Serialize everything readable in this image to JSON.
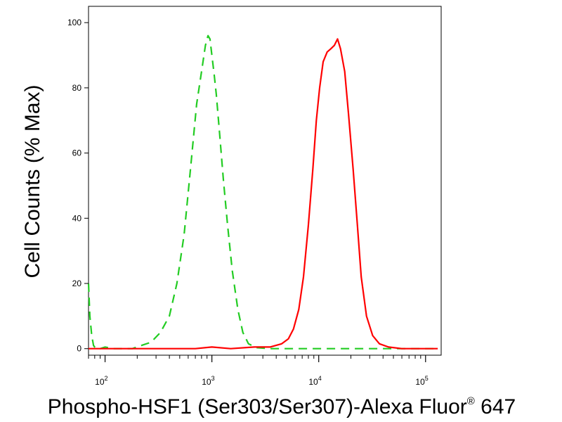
{
  "chart_data": {
    "type": "line",
    "title": "",
    "xlabel": "Phospho-HSF1 (Ser303/Ser307)-Alexa Fluor",
    "xlabel_sup": "®",
    "xlabel_tail": " 647",
    "ylabel": "Cell Counts (% Max)",
    "x_scale": "log",
    "xlim": [
      70,
      140000
    ],
    "ylim": [
      -2,
      105
    ],
    "x_ticks": [
      {
        "value": 100,
        "base": "10",
        "exp": "2"
      },
      {
        "value": 1000,
        "base": "10",
        "exp": "3"
      },
      {
        "value": 10000,
        "base": "10",
        "exp": "4"
      },
      {
        "value": 100000,
        "base": "10",
        "exp": "5"
      }
    ],
    "y_ticks": [
      0,
      20,
      40,
      60,
      80,
      100
    ],
    "grid": false,
    "legend": "none",
    "series": [
      {
        "color": "#22cc22",
        "style": "dashed",
        "x": [
          70,
          72,
          75,
          78,
          82,
          90,
          100,
          120,
          150,
          180,
          220,
          270,
          330,
          400,
          470,
          550,
          630,
          720,
          800,
          870,
          920,
          960,
          1000,
          1050,
          1100,
          1180,
          1280,
          1400,
          1550,
          1750,
          1950,
          2200,
          2600,
          3500,
          6000,
          10000,
          20000,
          50000,
          130000
        ],
        "y": [
          20,
          10,
          4,
          1,
          0,
          0,
          0.5,
          0,
          0,
          0,
          1,
          2,
          5,
          10,
          20,
          35,
          55,
          75,
          85,
          93,
          96,
          95,
          90,
          84,
          78,
          66,
          52,
          38,
          24,
          12,
          5,
          1.5,
          0.3,
          0,
          0,
          0,
          0,
          0,
          0
        ]
      },
      {
        "color": "#ff0000",
        "style": "solid",
        "x": [
          70,
          100,
          300,
          700,
          1000,
          1500,
          2500,
          3500,
          4500,
          5200,
          5800,
          6500,
          7200,
          8000,
          8800,
          9500,
          10200,
          11000,
          12000,
          13000,
          14000,
          15000,
          16000,
          17500,
          19000,
          21000,
          23000,
          25000,
          28000,
          32000,
          37000,
          45000,
          60000,
          130000
        ],
        "y": [
          0,
          0,
          0,
          0,
          0.5,
          0,
          0.5,
          0.5,
          1.5,
          3,
          6,
          12,
          22,
          38,
          55,
          70,
          80,
          88,
          91,
          92,
          93,
          95,
          92,
          85,
          72,
          55,
          38,
          22,
          10,
          4,
          1.5,
          0.5,
          0,
          0
        ]
      }
    ]
  }
}
